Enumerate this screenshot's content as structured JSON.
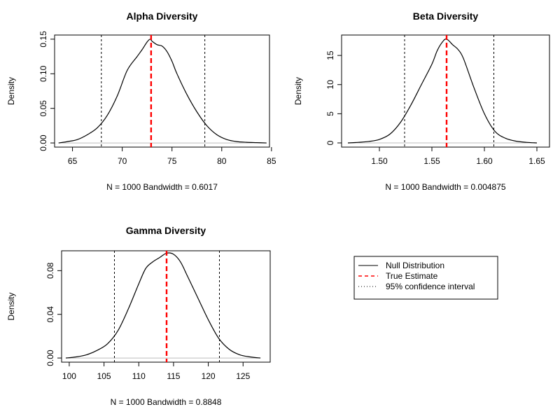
{
  "figure": {
    "legend": {
      "entries": [
        {
          "label": "Null Distribution",
          "style": "solid",
          "color": "#000000"
        },
        {
          "label": "True Estimate",
          "style": "dashed",
          "color": "#ff0000"
        },
        {
          "label": "95% confidence interval",
          "style": "dotted",
          "color": "#000000"
        }
      ]
    }
  },
  "chart_data": [
    {
      "type": "line",
      "title": "Alpha Diversity",
      "xlabel": "N = 1000   Bandwidth = 0.6017",
      "ylabel": "Density",
      "xlim": [
        63.2,
        84.8
      ],
      "ylim": [
        -0.006,
        0.156
      ],
      "xticks": [
        65,
        70,
        75,
        80,
        85
      ],
      "xtick_labels": [
        "65",
        "70",
        "75",
        "80",
        "85"
      ],
      "yticks": [
        0,
        0.05,
        0.1,
        0.15
      ],
      "ytick_labels": [
        "0.00",
        "0.05",
        "0.10",
        "0.15"
      ],
      "series": [
        {
          "x": [
            63.6,
            64.5,
            65.5,
            66.5,
            67.5,
            68.5,
            69.5,
            70.5,
            71.5,
            72.0,
            72.5,
            72.8,
            73.0,
            73.5,
            74.0,
            74.5,
            75.0,
            75.5,
            76.5,
            77.5,
            78.5,
            79.5,
            80.5,
            81.5,
            82.5,
            83.5,
            84.5
          ],
          "y": [
            0.0,
            0.002,
            0.005,
            0.012,
            0.022,
            0.04,
            0.068,
            0.105,
            0.125,
            0.135,
            0.146,
            0.15,
            0.147,
            0.142,
            0.14,
            0.132,
            0.118,
            0.1,
            0.07,
            0.045,
            0.025,
            0.012,
            0.005,
            0.002,
            0.001,
            0.0005,
            0.0
          ]
        }
      ],
      "true_estimate": 72.9,
      "ci": [
        67.9,
        78.3
      ]
    },
    {
      "type": "line",
      "title": "Beta Diversity",
      "xlabel": "N = 1000   Bandwidth = 0.004875",
      "ylabel": "Density",
      "xlim": [
        1.464,
        1.662
      ],
      "ylim": [
        -0.72,
        18.5
      ],
      "xticks": [
        1.5,
        1.55,
        1.6,
        1.65
      ],
      "xtick_labels": [
        "1.50",
        "1.55",
        "1.60",
        "1.65"
      ],
      "yticks": [
        0,
        5,
        10,
        15
      ],
      "ytick_labels": [
        "0",
        "5",
        "10",
        "15"
      ],
      "series": [
        {
          "x": [
            1.47,
            1.48,
            1.49,
            1.5,
            1.51,
            1.52,
            1.53,
            1.54,
            1.55,
            1.555,
            1.56,
            1.564,
            1.57,
            1.575,
            1.58,
            1.59,
            1.6,
            1.61,
            1.62,
            1.63,
            1.64,
            1.65
          ],
          "y": [
            0.0,
            0.1,
            0.25,
            0.6,
            1.5,
            3.5,
            6.5,
            10.0,
            13.5,
            15.8,
            17.3,
            17.8,
            16.8,
            16.0,
            14.5,
            9.5,
            5.0,
            2.0,
            0.8,
            0.3,
            0.1,
            0.0
          ]
        }
      ],
      "true_estimate": 1.564,
      "ci": [
        1.524,
        1.609
      ]
    },
    {
      "type": "line",
      "title": "Gamma Diversity",
      "xlabel": "N = 1000   Bandwidth = 0.8848",
      "ylabel": "Density",
      "xlim": [
        98.9,
        128.9
      ],
      "ylim": [
        -0.0038,
        0.0982
      ],
      "xticks": [
        100,
        105,
        110,
        115,
        120,
        125
      ],
      "xtick_labels": [
        "100",
        "105",
        "110",
        "115",
        "120",
        "125"
      ],
      "yticks": [
        0,
        0.04,
        0.08
      ],
      "ytick_labels": [
        "0.00",
        "0.04",
        "0.08"
      ],
      "series": [
        {
          "x": [
            99.5,
            101,
            102.5,
            104,
            105.5,
            107,
            108.5,
            110,
            111,
            112,
            113,
            114,
            115,
            116,
            117,
            118.5,
            120,
            121.5,
            123,
            124.5,
            126,
            127.5
          ],
          "y": [
            0.0,
            0.001,
            0.003,
            0.007,
            0.013,
            0.025,
            0.045,
            0.068,
            0.082,
            0.088,
            0.092,
            0.096,
            0.095,
            0.088,
            0.075,
            0.055,
            0.035,
            0.018,
            0.008,
            0.003,
            0.001,
            0.0
          ]
        }
      ],
      "true_estimate": 114.0,
      "ci": [
        106.5,
        121.6
      ]
    }
  ]
}
